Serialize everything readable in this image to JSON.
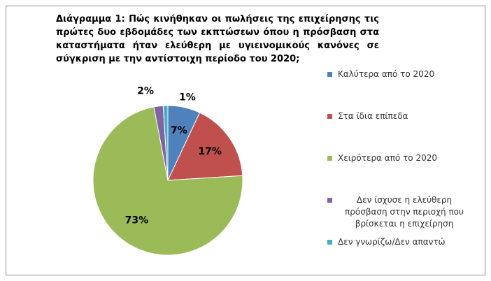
{
  "chart_data": {
    "type": "pie",
    "title": "Διάγραμμα 1: Πώς κινήθηκαν  οι πωλήσεις της επιχείρησης τις πρώτες δυο εβδομάδες των εκπτώσεων όπου η πρόσβαση στα καταστήματα ήταν ελεύθερη με υγιεινομικούς κανόνες σε σύγκριση με την αντίστοιχη περίοδο του 2020;",
    "categories": [
      "Καλύτερα από το 2020",
      "Στα ίδια επίπεδα",
      "Χειρότερα από το 2020",
      "Δεν ίσχυσε η ελεύθερη πρόσβαση στην περιοχή που βρίσκεται η επιχείρηση",
      "Δεν γνωρίζω/Δεν απαντώ"
    ],
    "values": [
      7,
      17,
      73,
      2,
      1
    ],
    "value_labels": [
      "7%",
      "17%",
      "73%",
      "2%",
      "1%"
    ],
    "colors": [
      "#4f81bd",
      "#c0504d",
      "#9bbb59",
      "#8064a2",
      "#4bacc6"
    ],
    "legend": "right"
  }
}
